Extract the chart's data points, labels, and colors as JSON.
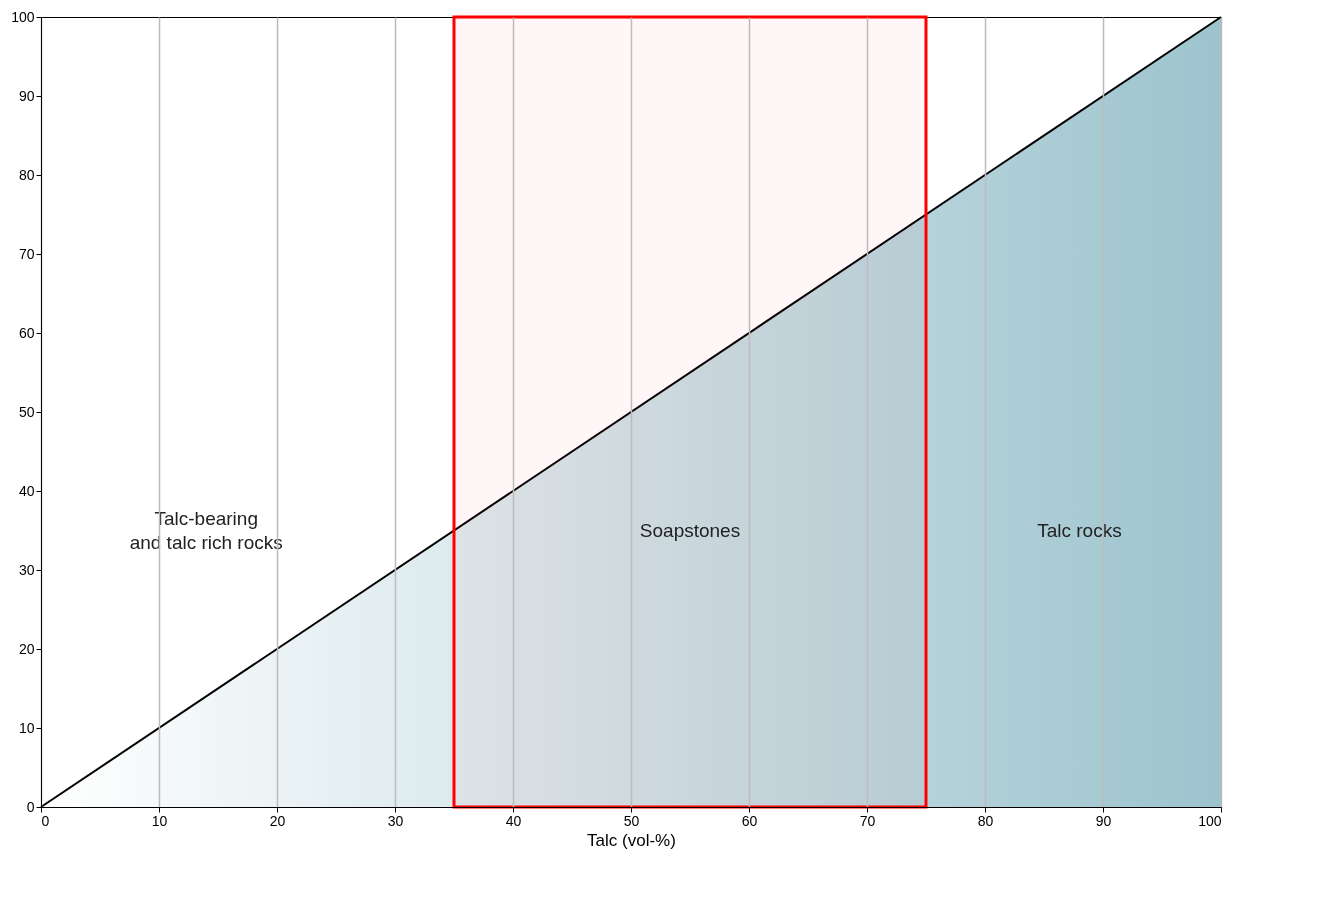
{
  "chart_data": {
    "type": "area",
    "xlabel": "Talc (vol-%)",
    "x": [
      0,
      100
    ],
    "series": [
      {
        "color": "#72aab9",
        "values": [
          0,
          100
        ]
      }
    ],
    "xlim": [
      0,
      100
    ],
    "ylim": [
      0,
      100
    ],
    "xticks": [
      0,
      10,
      20,
      30,
      40,
      50,
      60,
      70,
      80,
      90,
      100
    ],
    "yticks": [
      0,
      10,
      20,
      30,
      40,
      50,
      60,
      70,
      80,
      90,
      100
    ],
    "grid": "x",
    "bands": [
      {
        "axis": "x",
        "from": 35,
        "to": 75,
        "label": "Soapstones",
        "color": "#ff0000"
      }
    ],
    "annotations": [
      "Talc-bearing\nand talc rich rocks",
      "Talc rocks"
    ]
  }
}
